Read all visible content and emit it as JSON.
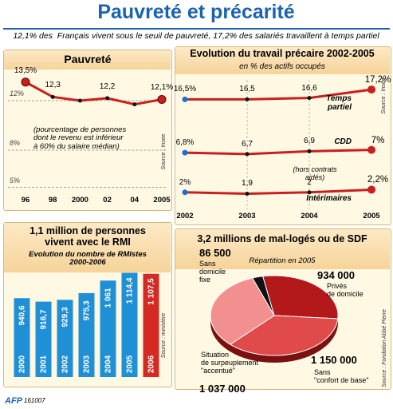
{
  "title": "Pauvreté et précarité",
  "subtitle": "12,1% des  Français vivent sous le seuil de pauvreté, 17,2% des salariés travaillent à temps partiel",
  "chart_data": [
    {
      "type": "line",
      "title": "Pauvreté",
      "categories": [
        "96",
        "98",
        "2000",
        "02",
        "04",
        "2005"
      ],
      "values": [
        13.5,
        12.3,
        12.0,
        12.2,
        11.7,
        12.1
      ],
      "value_labels": [
        "13,5%",
        "12,3",
        null,
        "12,2",
        null,
        "12,1%"
      ],
      "color": "#c8201e",
      "ylim": [
        4,
        14
      ],
      "yticks": [
        {
          "value": 5,
          "label": "5%"
        },
        {
          "value": 8,
          "label": "8%"
        },
        {
          "value": 12,
          "label": "12%"
        }
      ],
      "grid": true,
      "note": "(pourcentage de personnes\ndont le revenu est inférieur\nà 60% du salaire médian)",
      "source": "Source : Insee"
    },
    {
      "type": "multiline",
      "title": "Evolution du travail précaire 2002-2005",
      "subtitle": "en % des actifs occupés",
      "categories": [
        "2002",
        "2003",
        "2004",
        "2005"
      ],
      "series": [
        {
          "name": "Temps\npartiel",
          "color": "#c8201e",
          "ylim": [
            15.5,
            18
          ],
          "values": [
            16.5,
            16.5,
            16.6,
            17.2
          ],
          "value_labels": [
            "16,5%",
            "16,5",
            "16,6",
            "17,2%"
          ]
        },
        {
          "name": "CDD",
          "color": "#c8201e",
          "ylim": [
            5.5,
            8
          ],
          "values": [
            6.8,
            6.7,
            6.9,
            7
          ],
          "value_labels": [
            "6,8%",
            "6,7",
            "6,9",
            "7%"
          ]
        },
        {
          "name": "Intérimaires",
          "color": "#c8201e",
          "ylim": [
            0.5,
            3
          ],
          "values": [
            2,
            1.9,
            2,
            2.2
          ],
          "value_labels": [
            "2%",
            "1,9",
            "2",
            "2,2%"
          ]
        }
      ],
      "note": "(hors contrats\naidés)",
      "source": "Source : Insee"
    },
    {
      "type": "bar",
      "title": "1,1 million de personnes\nvivent avec le RMI",
      "subtitle": "Evolution du nombre de RMIstes\n2000-2006",
      "categories": [
        "2000",
        "2001",
        "2002",
        "2003",
        "2004",
        "2005",
        "2006"
      ],
      "values": [
        940.6,
        916.7,
        929.3,
        975.3,
        1061,
        1114.4,
        1107.5
      ],
      "value_labels": [
        "940,6",
        "916,7",
        "929,3",
        "975,3",
        "1 061",
        "1 114,4",
        "1 107,5"
      ],
      "colors": [
        "#1f8fd6",
        "#1f8fd6",
        "#1f8fd6",
        "#1f8fd6",
        "#1f8fd6",
        "#1f8fd6",
        "#d42a22"
      ],
      "ylim": [
        400,
        1150
      ],
      "source": "Source : ministère"
    },
    {
      "type": "pie",
      "title": "3,2 millions de mal-logés ou de SDF",
      "subtitle": "Répartition en 2005",
      "categories": [
        "Sans\ndomicile\nfixe",
        "Privés\nde domicile",
        "Sans\n\"confort de base\"",
        "Situation\nde surpeuplement\n\"accentué\""
      ],
      "values": [
        86500,
        934000,
        1150000,
        1037000
      ],
      "value_labels": [
        "86 500",
        "934 000",
        "1 150 000",
        "1 037 000"
      ],
      "colors": [
        "#111111",
        "#b3191b",
        "#e04a4a",
        "#f29090"
      ],
      "source": "Source : Fondation Abbé Pierre"
    }
  ],
  "footer": {
    "logo": "AFP",
    "code": "161007"
  }
}
